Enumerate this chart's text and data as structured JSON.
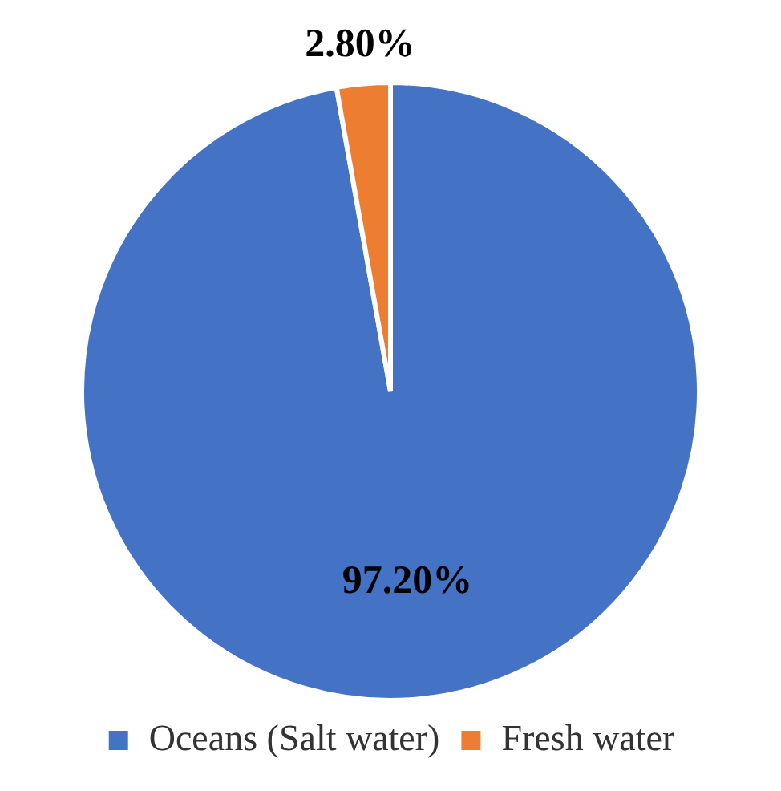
{
  "chart_data": {
    "type": "pie",
    "categories": [
      "Oceans (Salt water)",
      "Fresh water"
    ],
    "values": [
      97.2,
      2.8
    ],
    "colors": [
      "#4472c4",
      "#ed7d31"
    ],
    "value_labels": [
      "97.20%",
      "2.80%"
    ],
    "legend": "bottom"
  }
}
